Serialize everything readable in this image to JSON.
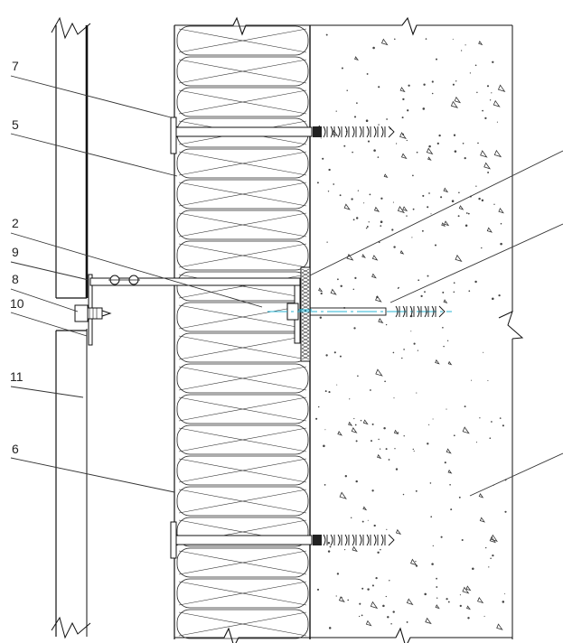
{
  "callouts": {
    "c7": "7",
    "c5": "5",
    "c2": "2",
    "c9": "9",
    "c8": "8",
    "c10": "10",
    "c11": "11",
    "c6": "6"
  },
  "materials": {
    "insulation": "mineral-wool",
    "substrate": "concrete-wall",
    "cladding": "facade-panel",
    "fixings": [
      "insulation-dowel",
      "bracket-anchor"
    ]
  },
  "colors": {
    "line": "#111111",
    "paper": "#ffffff",
    "accent": "#29b6d6"
  }
}
